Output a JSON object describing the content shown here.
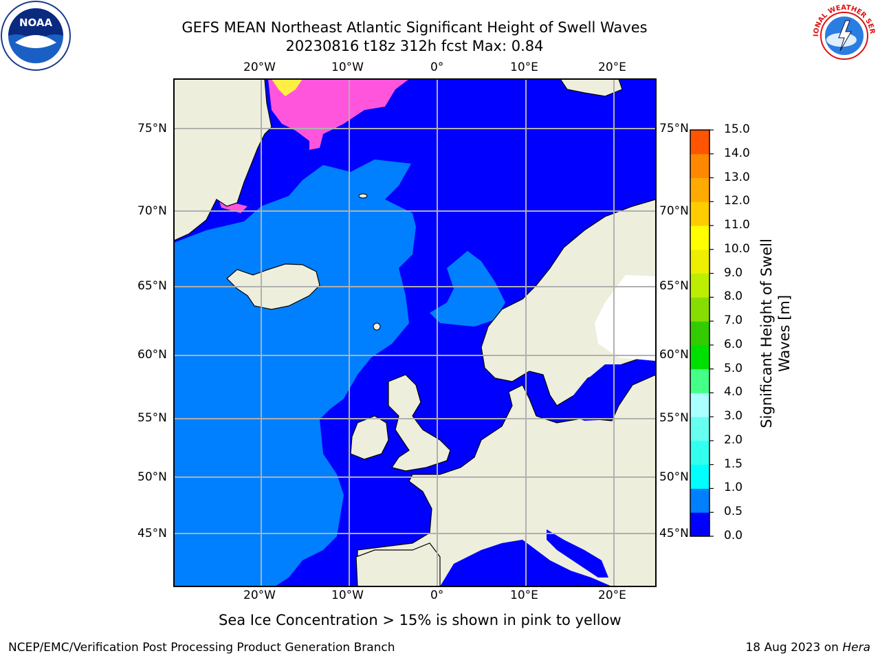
{
  "header": {
    "title_line1": "GEFS MEAN Northeast Atlantic Significant Height of Swell Waves",
    "title_line2": "20230816 t18z 312h fcst   Max: 0.84"
  },
  "logos": {
    "left": "noaa-logo",
    "left_text": "NOAA",
    "right": "nws-logo",
    "right_text": "NATIONAL WEATHER SERVICE"
  },
  "map": {
    "lon_labels": [
      "20°W",
      "10°W",
      "0°",
      "10°E",
      "20°E"
    ],
    "lat_labels": [
      "75°N",
      "70°N",
      "65°N",
      "60°N",
      "55°N",
      "50°N",
      "45°N"
    ],
    "colors": {
      "ocean_low": "#0000ff",
      "ocean_mid": "#0080ff",
      "land": "#eeeedc",
      "ice": "#ff44dd",
      "grid": "#b0b0b0"
    }
  },
  "colorbar": {
    "title_line1": "Significant Height of Swell",
    "title_line2": "Waves [m]",
    "ticks": [
      "0.0",
      "0.5",
      "1.0",
      "1.5",
      "2.0",
      "3.0",
      "4.0",
      "5.0",
      "6.0",
      "7.0",
      "8.0",
      "9.0",
      "10.0",
      "11.0",
      "12.0",
      "13.0",
      "14.0",
      "15.0"
    ],
    "colors": [
      "#0000ff",
      "#0080ff",
      "#00ffff",
      "#33ffee",
      "#66fff0",
      "#aaffff",
      "#44ff88",
      "#00e000",
      "#33cc00",
      "#88dd00",
      "#bbee00",
      "#eeee00",
      "#ffff00",
      "#ffcc00",
      "#ffaa00",
      "#ff8800",
      "#ff5500",
      "#ff2200",
      "#ff0000"
    ]
  },
  "caption": "Sea Ice Concentration > 15% is shown in pink to yellow",
  "footer": {
    "left": "NCEP/EMC/Verification Post Processing Product Generation Branch",
    "right_prefix": "18 Aug 2023 on ",
    "right_italic": "Hera"
  }
}
